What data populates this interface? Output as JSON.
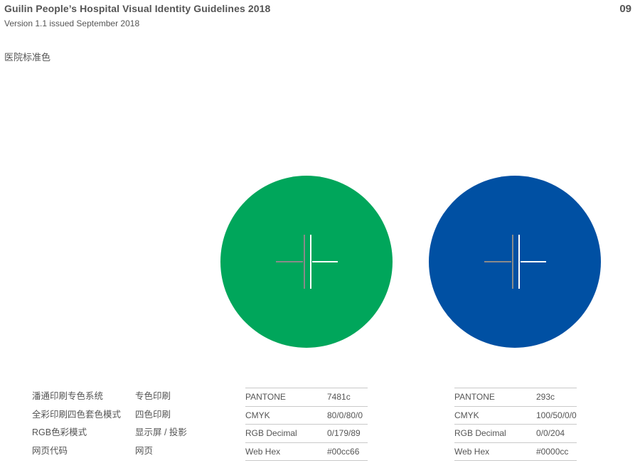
{
  "header": {
    "title": "Guilin People’s Hospital Visual Identity Guidelines 2018",
    "subtitle": "Version 1.1 issued September 2018",
    "page_number": "09"
  },
  "section_title": "医院标准色",
  "label_column_a": [
    "潘通印刷专色系统",
    "全彩印刷四色套色模式",
    "RGB色彩模式",
    "网页代码"
  ],
  "label_column_b": [
    "专色印刷",
    "四色印刷",
    "显示屏 / 投影",
    "网页"
  ],
  "swatches": [
    {
      "color": "#00a65b",
      "specs": [
        {
          "key": "PANTONE",
          "value": "7481c"
        },
        {
          "key": "CMYK",
          "value": "80/0/80/0"
        },
        {
          "key": "RGB Decimal",
          "value": "0/179/89"
        },
        {
          "key": "Web Hex",
          "value": "#00cc66"
        }
      ]
    },
    {
      "color": "#0050a3",
      "specs": [
        {
          "key": "PANTONE",
          "value": "293c"
        },
        {
          "key": "CMYK",
          "value": "100/50/0/0"
        },
        {
          "key": "RGB Decimal",
          "value": "0/0/204"
        },
        {
          "key": "Web Hex",
          "value": "#0000cc"
        }
      ]
    }
  ]
}
